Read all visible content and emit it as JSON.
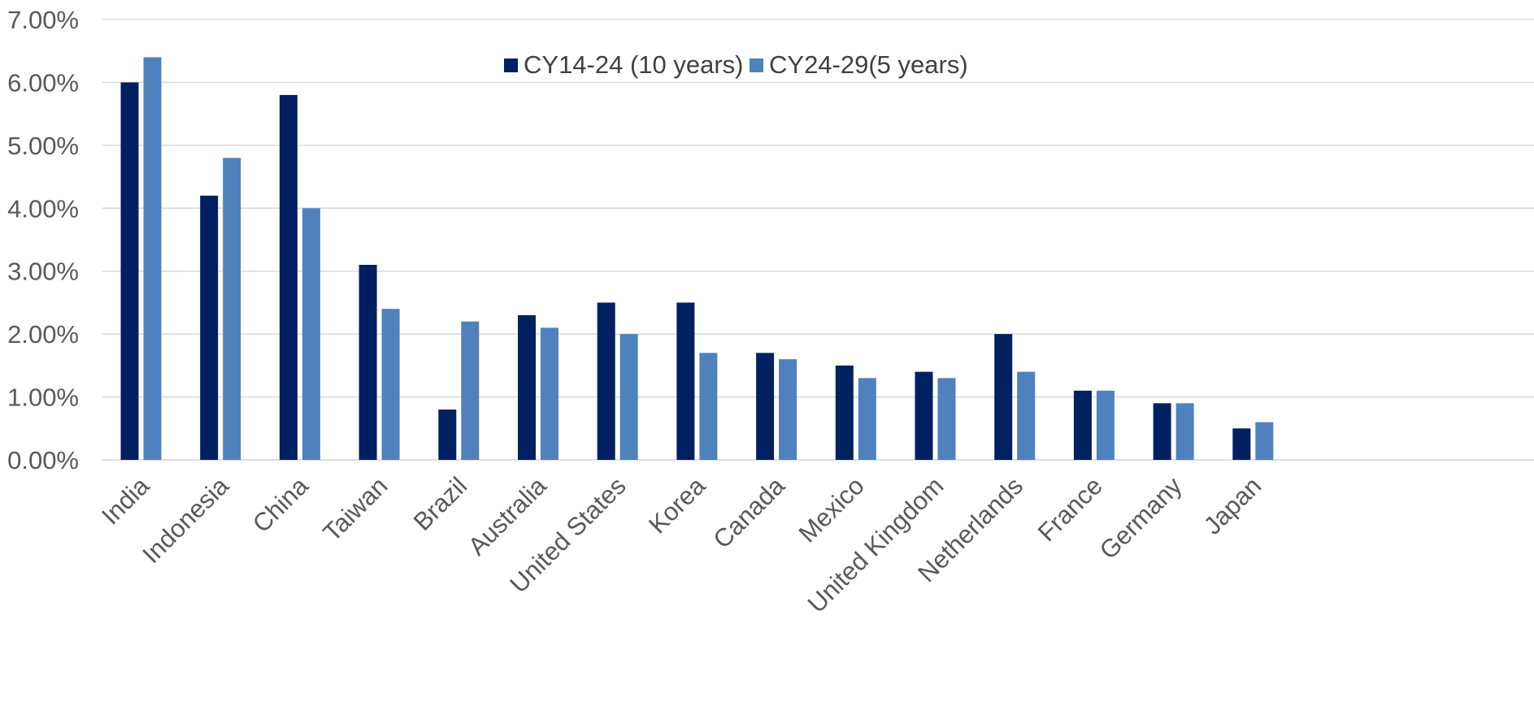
{
  "chart_data": {
    "type": "bar",
    "title": "",
    "xlabel": "",
    "ylabel": "",
    "ylim": [
      0,
      7
    ],
    "yticks": [
      0,
      1,
      2,
      3,
      4,
      5,
      6,
      7
    ],
    "ytick_labels": [
      "0.00%",
      "1.00%",
      "2.00%",
      "3.00%",
      "4.00%",
      "5.00%",
      "6.00%",
      "7.00%"
    ],
    "grid": true,
    "legend_position": "top-center",
    "categories": [
      "India",
      "Indonesia",
      "China",
      "Taiwan",
      "Brazil",
      "Australia",
      "United States",
      "Korea",
      "Canada",
      "Mexico",
      "United Kingdom",
      "Netherlands",
      "France",
      "Germany",
      "Japan"
    ],
    "series": [
      {
        "name": "CY14-24 (10 years)",
        "color": "#002060",
        "values": [
          6.0,
          4.2,
          5.8,
          3.1,
          0.8,
          2.3,
          2.5,
          2.5,
          1.7,
          1.5,
          1.4,
          2.0,
          1.1,
          0.9,
          0.5
        ]
      },
      {
        "name": "CY24-29(5 years)",
        "color": "#4f81bd",
        "values": [
          6.4,
          4.8,
          4.0,
          2.4,
          2.2,
          2.1,
          2.0,
          1.7,
          1.6,
          1.3,
          1.3,
          1.4,
          1.1,
          0.9,
          0.6
        ]
      }
    ]
  }
}
